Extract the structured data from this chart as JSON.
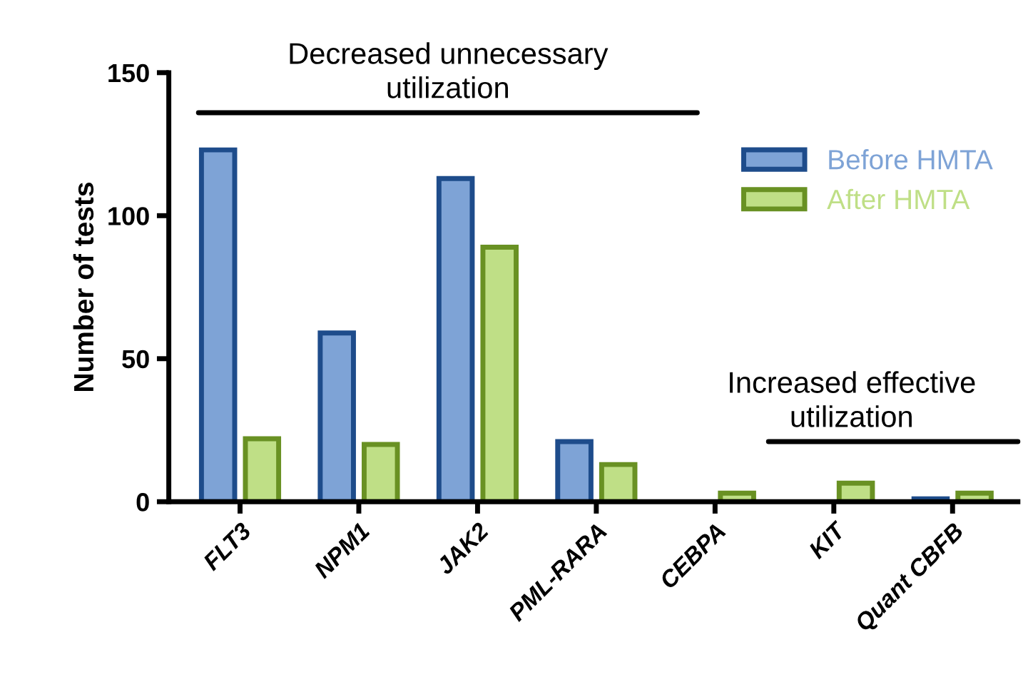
{
  "chart_data": {
    "type": "bar",
    "ylabel": "Number of tests",
    "categories": [
      "FLT3",
      "NPM1",
      "JAK2",
      "PML-RARA",
      "CEBPA",
      "KIT",
      "Quant CBFB"
    ],
    "series": [
      {
        "name": "Before HMTA",
        "color": "#7ea3d6",
        "values": [
          123,
          59,
          113,
          21,
          0,
          0,
          1
        ]
      },
      {
        "name": "After HMTA",
        "color": "#bfdf86",
        "values": [
          22,
          20,
          89,
          13,
          3,
          6.5,
          3
        ]
      }
    ],
    "ylim": [
      0,
      150
    ],
    "yticks": [
      0,
      50,
      100,
      150
    ],
    "ref_lines": [
      {
        "axis": "y",
        "value": 136,
        "label": "Decreased unnecessary\nutilization"
      },
      {
        "axis": "y",
        "value": 21,
        "label": "Increased effective\nutilization"
      }
    ],
    "legend": "top right",
    "grid": false
  }
}
